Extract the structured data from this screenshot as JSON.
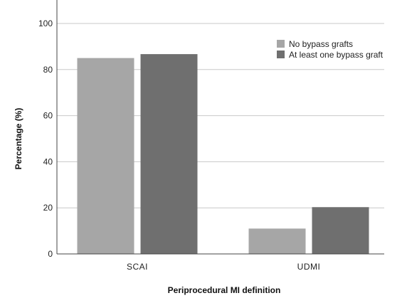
{
  "chart_data": {
    "type": "bar",
    "title": "",
    "xlabel": "Periprocedural MI definition",
    "ylabel": "Percentage (%)",
    "categories": [
      "SCAI",
      "UDMI"
    ],
    "series": [
      {
        "name": "No bypass grafts",
        "color": "#a6a6a6",
        "values": [
          85,
          11
        ]
      },
      {
        "name": "At least one bypass graft",
        "color": "#6f6f6f",
        "values": [
          86.7,
          20.3
        ]
      }
    ],
    "ylim": [
      0,
      100
    ],
    "yticks": [
      0,
      20,
      40,
      60,
      80,
      100
    ],
    "grid": true,
    "legend": "top-right"
  }
}
